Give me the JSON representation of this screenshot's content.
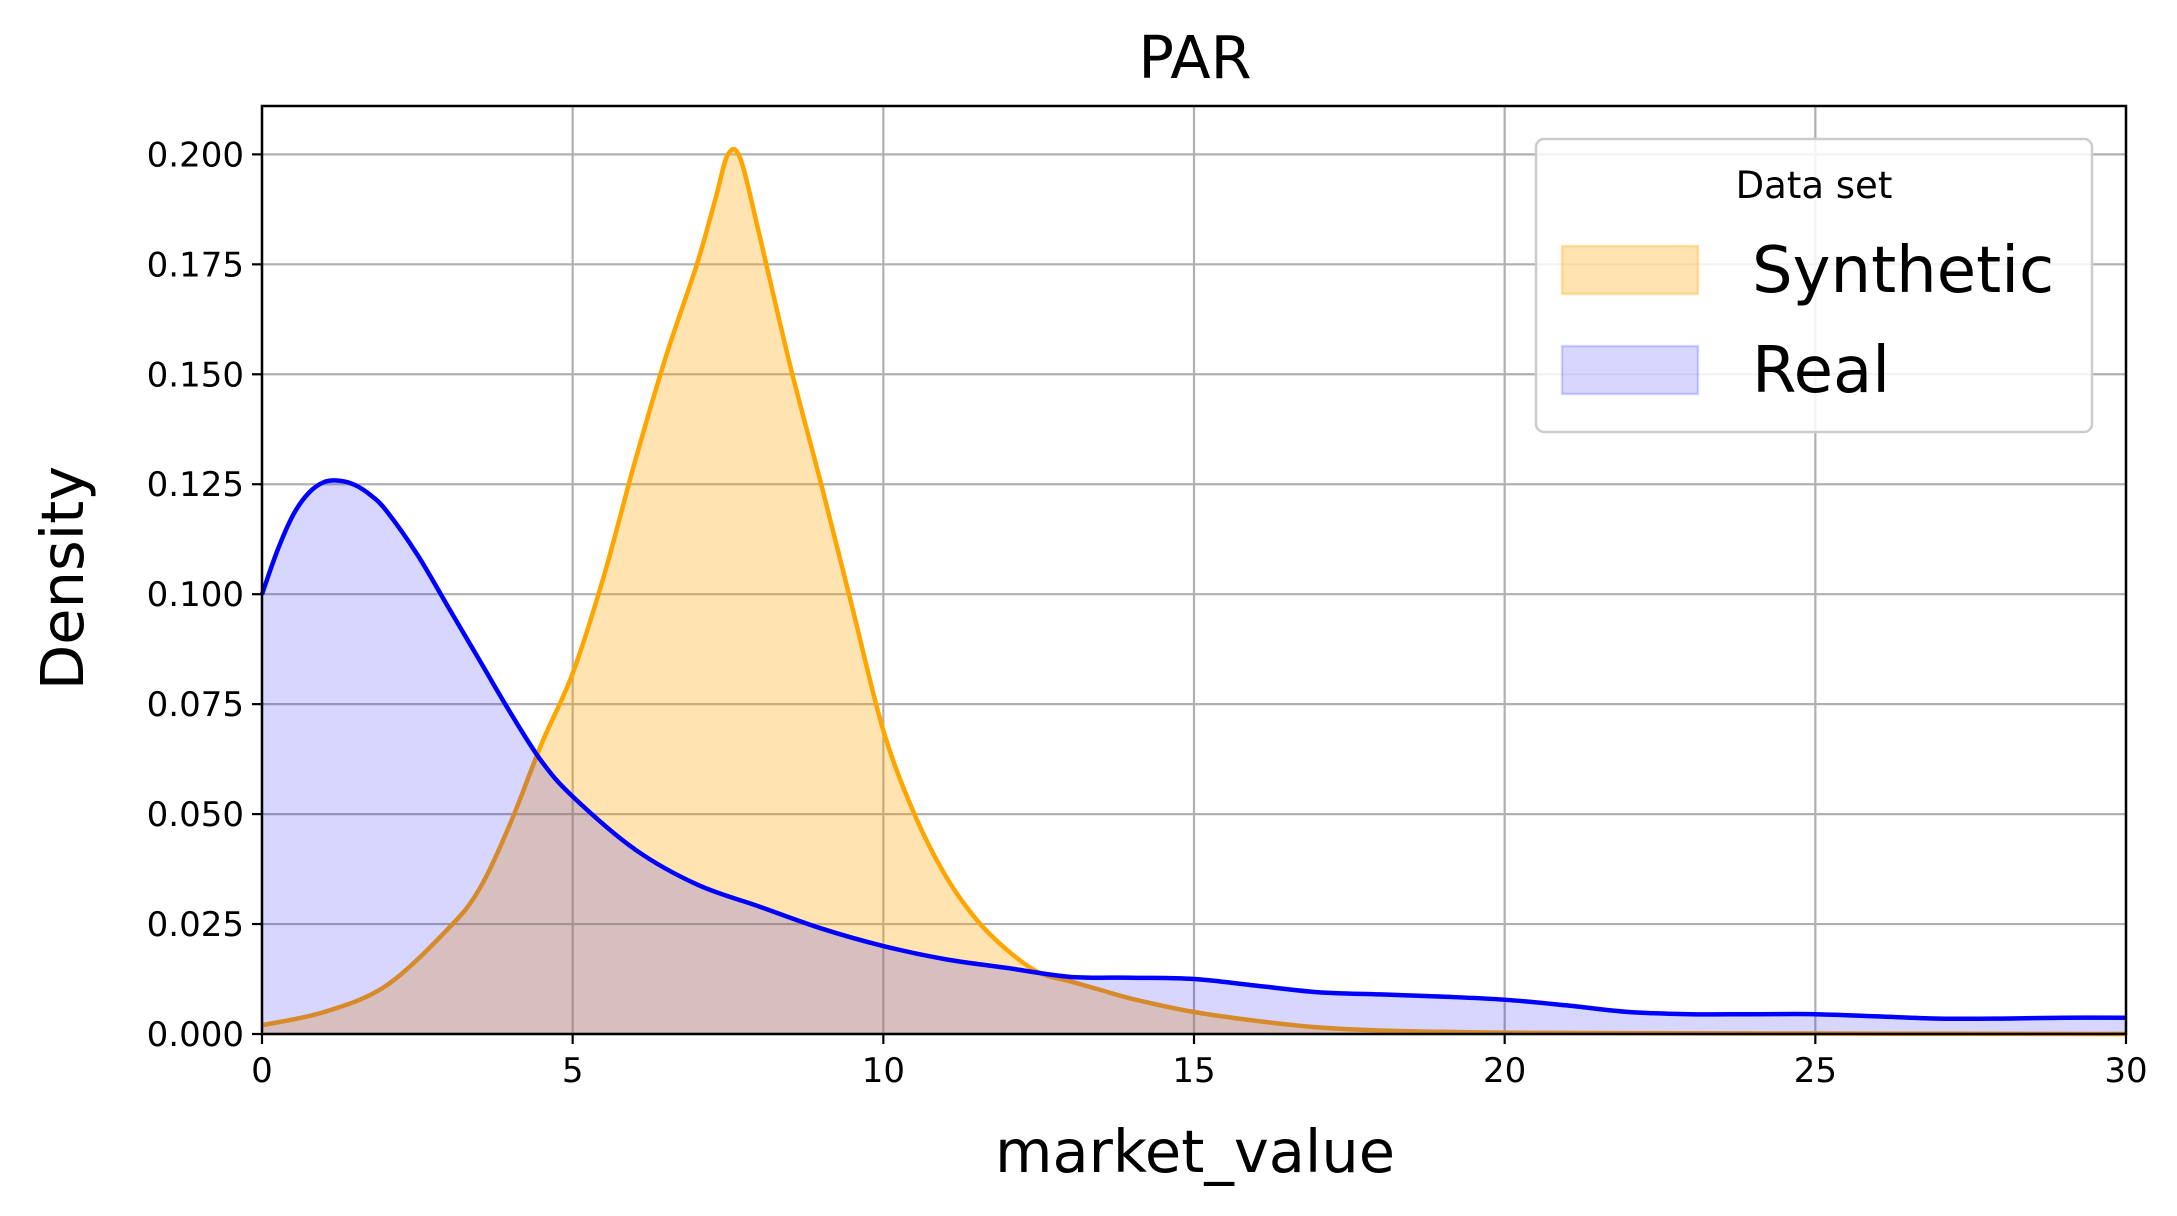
{
  "chart_data": {
    "type": "area",
    "title": "PAR",
    "xlabel": "market_value",
    "ylabel": "Density",
    "xlim": [
      0,
      30
    ],
    "ylim": [
      0,
      0.211
    ],
    "xticks": [
      "0",
      "5",
      "10",
      "15",
      "20",
      "25",
      "30"
    ],
    "yticks": [
      "0.000",
      "0.025",
      "0.050",
      "0.075",
      "0.100",
      "0.125",
      "0.150",
      "0.175",
      "0.200"
    ],
    "grid": true,
    "legend": {
      "title": "Data set",
      "position": "top-right",
      "entries": [
        "Synthetic",
        "Real"
      ]
    },
    "series": [
      {
        "name": "Synthetic",
        "line_color": "#ffa500",
        "fill_color": "#ffa500",
        "fill_opacity": 0.3,
        "x": [
          0,
          1,
          2,
          3,
          3.5,
          4,
          4.5,
          5,
          5.5,
          6,
          6.5,
          7,
          7.3,
          7.5,
          7.7,
          8,
          8.5,
          9,
          9.5,
          10,
          10.5,
          11,
          11.5,
          12,
          12.5,
          13,
          13.5,
          14,
          15,
          16,
          17,
          18,
          19,
          20,
          22,
          25,
          30
        ],
        "values": [
          0.002,
          0.005,
          0.011,
          0.024,
          0.033,
          0.048,
          0.066,
          0.082,
          0.104,
          0.13,
          0.154,
          0.175,
          0.19,
          0.2,
          0.199,
          0.182,
          0.152,
          0.125,
          0.097,
          0.069,
          0.05,
          0.036,
          0.026,
          0.019,
          0.014,
          0.012,
          0.01,
          0.008,
          0.005,
          0.003,
          0.0015,
          0.0008,
          0.0005,
          0.0003,
          0.0002,
          0.0001,
          0
        ]
      },
      {
        "name": "Real",
        "line_color": "#0000ff",
        "fill_color": "#0000ff",
        "fill_opacity": 0.16,
        "x": [
          0,
          0.25,
          0.5,
          0.75,
          1,
          1.25,
          1.5,
          1.75,
          2,
          2.5,
          3,
          3.5,
          4,
          4.5,
          5,
          6,
          7,
          8,
          9,
          10,
          11,
          12,
          13,
          14,
          15,
          16,
          17,
          18,
          19,
          20,
          21,
          22,
          23,
          24,
          25,
          26,
          27,
          28,
          29,
          30
        ],
        "values": [
          0.1,
          0.11,
          0.118,
          0.123,
          0.1255,
          0.1258,
          0.1248,
          0.1225,
          0.119,
          0.109,
          0.097,
          0.085,
          0.073,
          0.062,
          0.054,
          0.042,
          0.034,
          0.029,
          0.024,
          0.02,
          0.017,
          0.015,
          0.013,
          0.0128,
          0.0125,
          0.011,
          0.0095,
          0.009,
          0.0085,
          0.0078,
          0.0065,
          0.005,
          0.0045,
          0.0045,
          0.0045,
          0.004,
          0.0035,
          0.0035,
          0.0037,
          0.0037
        ]
      }
    ]
  }
}
